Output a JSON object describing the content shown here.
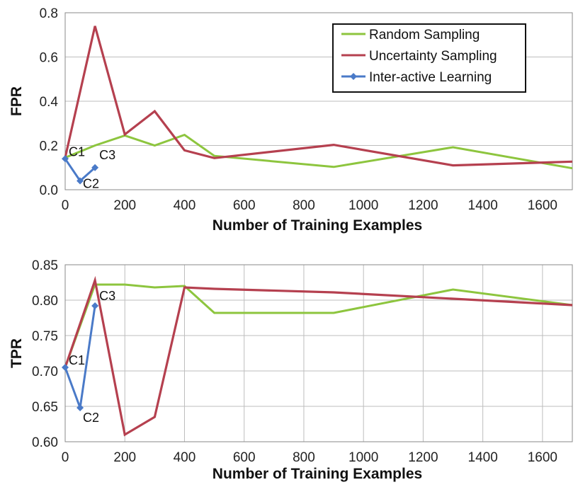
{
  "colors": {
    "random": "#8dc53e",
    "uncertainty": "#b5404f",
    "interactive": "#4a7ac8"
  },
  "legend": {
    "random": "Random Sampling",
    "uncertainty": "Uncertainty Sampling",
    "interactive": "Inter-active Learning"
  },
  "chart_data": [
    {
      "type": "line",
      "ylabel": "FPR",
      "xlabel": "Number of Training Examples",
      "xlim": [
        0,
        1700
      ],
      "ylim": [
        0.0,
        0.8
      ],
      "xticks": [
        0,
        200,
        400,
        600,
        800,
        1000,
        1200,
        1400,
        1600
      ],
      "yticks": [
        "0.0",
        "0.2",
        "0.4",
        "0.6",
        "0.8"
      ],
      "yvals": [
        0.0,
        0.2,
        0.4,
        0.6,
        0.8
      ],
      "grid": "horizontal",
      "legend_position": "top-right",
      "series": [
        {
          "name": "Random Sampling",
          "x": [
            0,
            100,
            200,
            300,
            400,
            500,
            900,
            1300,
            1700
          ],
          "y": [
            0.145,
            0.2,
            0.245,
            0.2,
            0.248,
            0.153,
            0.103,
            0.192,
            0.097
          ]
        },
        {
          "name": "Uncertainty Sampling",
          "x": [
            0,
            100,
            200,
            300,
            400,
            500,
            900,
            1300,
            1700
          ],
          "y": [
            0.145,
            0.74,
            0.25,
            0.355,
            0.178,
            0.143,
            0.203,
            0.11,
            0.127
          ]
        },
        {
          "name": "Inter-active Learning",
          "x": [
            0,
            50,
            100
          ],
          "y": [
            0.14,
            0.04,
            0.1
          ],
          "labels": [
            "C1",
            "C2",
            "C3"
          ]
        }
      ]
    },
    {
      "type": "line",
      "ylabel": "TPR",
      "xlabel": "Number of Training Examples",
      "xlim": [
        0,
        1700
      ],
      "ylim": [
        0.6,
        0.85
      ],
      "xticks": [
        0,
        200,
        400,
        600,
        800,
        1000,
        1200,
        1400,
        1600
      ],
      "yticks": [
        "0.60",
        "0.65",
        "0.70",
        "0.75",
        "0.80",
        "0.85"
      ],
      "yvals": [
        0.6,
        0.65,
        0.7,
        0.75,
        0.8,
        0.85
      ],
      "grid": "both",
      "series": [
        {
          "name": "Random Sampling",
          "x": [
            0,
            100,
            200,
            300,
            400,
            500,
            900,
            1300,
            1700
          ],
          "y": [
            0.705,
            0.822,
            0.822,
            0.818,
            0.82,
            0.782,
            0.782,
            0.815,
            0.793
          ]
        },
        {
          "name": "Uncertainty Sampling",
          "x": [
            0,
            100,
            200,
            300,
            400,
            500,
            900,
            1300,
            1700
          ],
          "y": [
            0.705,
            0.828,
            0.61,
            0.635,
            0.818,
            0.816,
            0.811,
            0.802,
            0.793
          ]
        },
        {
          "name": "Inter-active Learning",
          "x": [
            0,
            50,
            100
          ],
          "y": [
            0.705,
            0.648,
            0.792
          ],
          "labels": [
            "C1",
            "C2",
            "C3"
          ]
        }
      ]
    }
  ]
}
